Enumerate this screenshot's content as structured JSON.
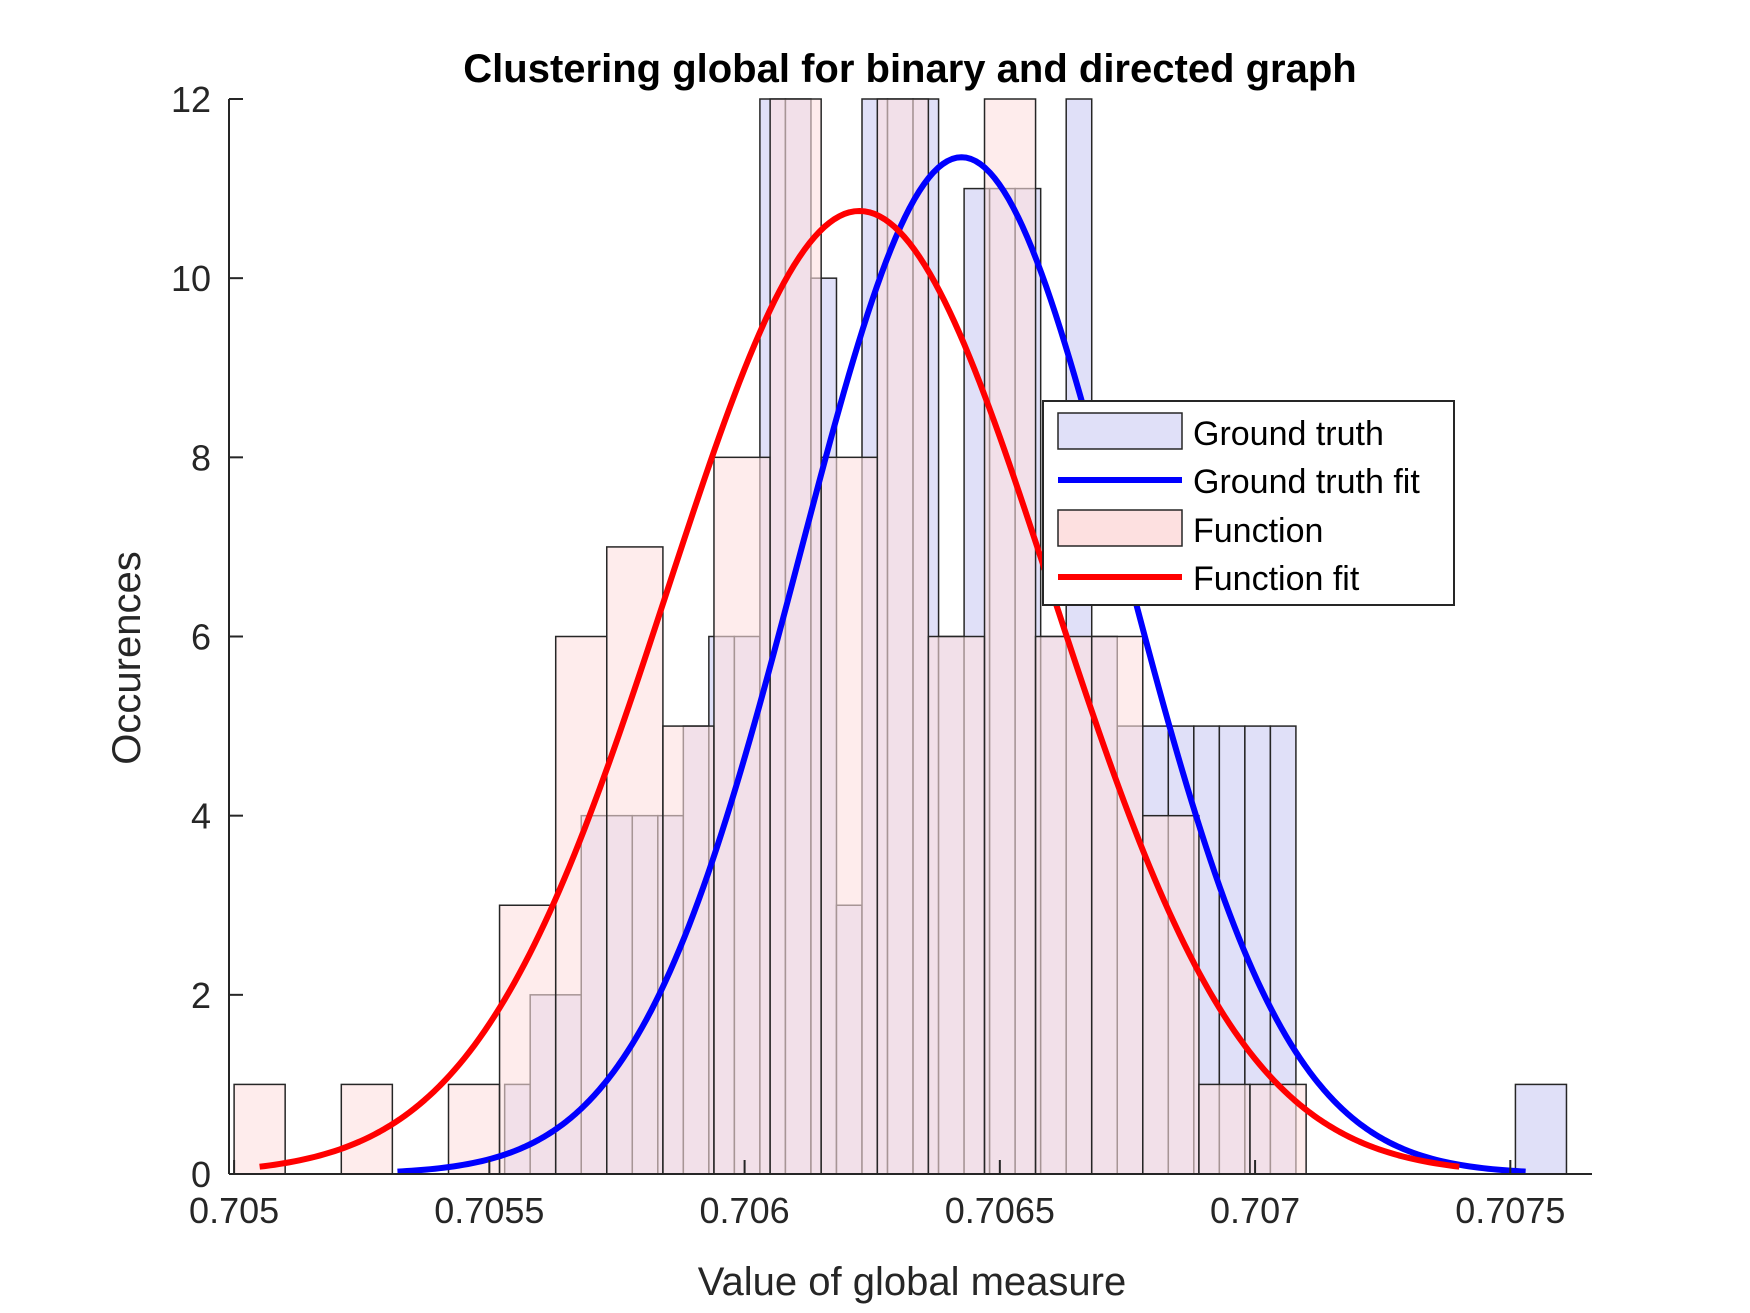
{
  "chart_data": {
    "type": "bar",
    "title": "Clustering global for binary and directed graph",
    "xlabel": "Value of global measure",
    "ylabel": "Occurences",
    "xlim": [
      0.70499,
      0.70766
    ],
    "ylim": [
      0,
      12
    ],
    "xticks": [
      0.705,
      0.7055,
      0.706,
      0.7065,
      0.707,
      0.7075
    ],
    "xtick_labels": [
      "0.705",
      "0.7055",
      "0.706",
      "0.7065",
      "0.707",
      "0.7075"
    ],
    "yticks": [
      0,
      2,
      4,
      6,
      8,
      10,
      12
    ],
    "ytick_labels": [
      "0",
      "2",
      "4",
      "6",
      "8",
      "10",
      "12"
    ],
    "grid": false,
    "legend_position": "right",
    "series": [
      {
        "name": "Ground truth",
        "kind": "histogram",
        "color": "#e0e0f8",
        "bin_edges": [
          0.70553,
          0.70558,
          0.70563,
          0.70568,
          0.70573,
          0.70578,
          0.70583,
          0.70588,
          0.70593,
          0.70598,
          0.70603,
          0.70608,
          0.70613,
          0.70618,
          0.70623,
          0.70628,
          0.70633,
          0.70638,
          0.70643,
          0.70648,
          0.70653,
          0.70658,
          0.70663,
          0.70668,
          0.70673,
          0.70678,
          0.70683,
          0.70688,
          0.70693,
          0.70698,
          0.70703,
          0.70708
        ],
        "counts": [
          1,
          2,
          2,
          4,
          4,
          4,
          4,
          5,
          6,
          6,
          12,
          12,
          10,
          3,
          12,
          12,
          12,
          6,
          11,
          11,
          11,
          6,
          12,
          6,
          5,
          5,
          5,
          5,
          5,
          5,
          5
        ],
        "outliers": [
          {
            "x0": 0.70751,
            "x1": 0.70761,
            "count": 1
          }
        ]
      },
      {
        "name": "Ground truth fit",
        "kind": "normal-fit",
        "color": "#0000ff",
        "mean": 0.706425,
        "peak": 11.35,
        "sigma": 0.000318,
        "x_range": [
          0.70532,
          0.70753
        ]
      },
      {
        "name": "Function",
        "kind": "histogram",
        "color": "#fde0e0",
        "bin_edges": [
          0.705,
          0.7051,
          0.70521,
          0.70531,
          0.70542,
          0.70552,
          0.70563,
          0.70573,
          0.70584,
          0.70594,
          0.70605,
          0.70615,
          0.70626,
          0.70636,
          0.70647,
          0.70657,
          0.70668,
          0.70678,
          0.70689,
          0.70699,
          0.7071
        ],
        "counts": [
          1,
          0,
          1,
          0,
          1,
          3,
          6,
          7,
          5,
          8,
          12,
          8,
          12,
          6,
          12,
          6,
          6,
          4,
          1,
          1
        ],
        "outliers": []
      },
      {
        "name": "Function fit",
        "kind": "normal-fit",
        "color": "#ff0000",
        "mean": 0.706225,
        "peak": 10.75,
        "sigma": 0.000376,
        "x_range": [
          0.70505,
          0.7074
        ]
      }
    ]
  }
}
